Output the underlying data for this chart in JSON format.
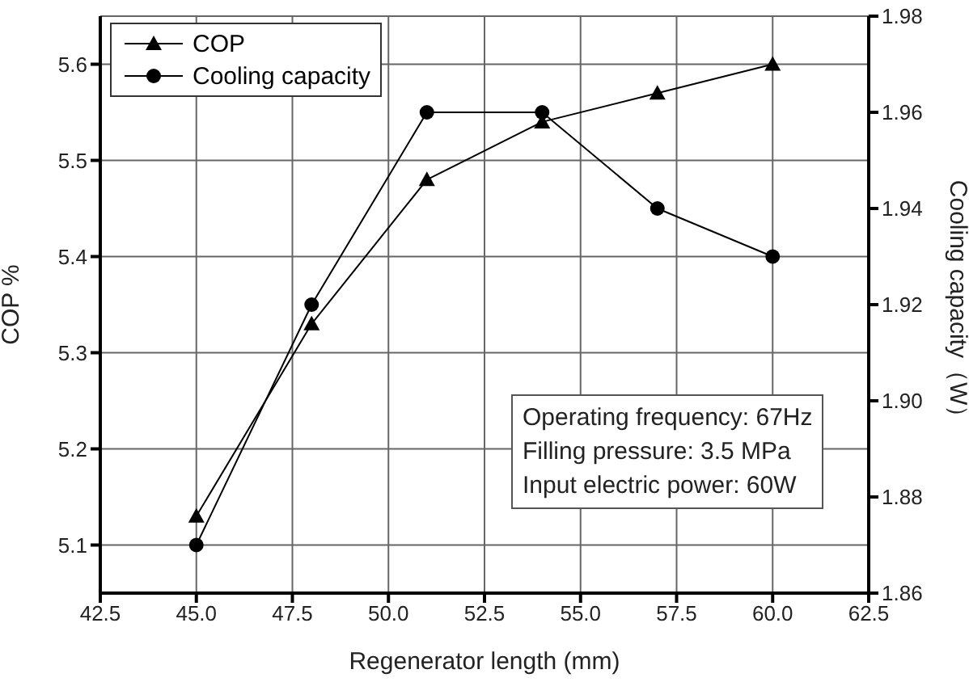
{
  "chart_data": {
    "type": "line",
    "xlabel": "Regenerator length (mm)",
    "ylabel": "COP  %",
    "y2label": "Cooling capacity（W）",
    "x": [
      45,
      48,
      51,
      54,
      57,
      60
    ],
    "series": [
      {
        "name": "COP",
        "color": "#000000",
        "marker": "triangle",
        "values": [
          5.13,
          5.33,
          5.48,
          5.54,
          5.57,
          5.6
        ]
      },
      {
        "name": "Cooling capacity",
        "color": "#000000",
        "marker": "circle",
        "axis": "y2",
        "values": [
          1.87,
          1.92,
          1.96,
          1.96,
          1.94,
          1.93
        ]
      }
    ],
    "xlim": [
      42.5,
      62.5
    ],
    "xticks": [
      42.5,
      {
        "value": 45,
        "label": "45.0"
      },
      47.5,
      {
        "value": 50,
        "label": "50.0"
      },
      52.5,
      {
        "value": 55,
        "label": "55.0"
      },
      57.5,
      {
        "value": 60,
        "label": "60.0"
      },
      62.5
    ],
    "ylim": [
      5.05,
      5.65
    ],
    "yticks": [
      5.1,
      5.2,
      5.3,
      5.4,
      5.5,
      5.6
    ],
    "y2lim": [
      1.86,
      1.98
    ],
    "y2ticks": [
      1.86,
      1.88,
      {
        "value": 1.9,
        "label": "1.90"
      },
      1.92,
      1.94,
      1.96,
      1.98
    ],
    "grid": true,
    "legend": "top left",
    "annotations": [
      "Operating frequency: 67Hz",
      "Filling pressure: 3.5 MPa",
      "Input electric power: 60W"
    ]
  }
}
